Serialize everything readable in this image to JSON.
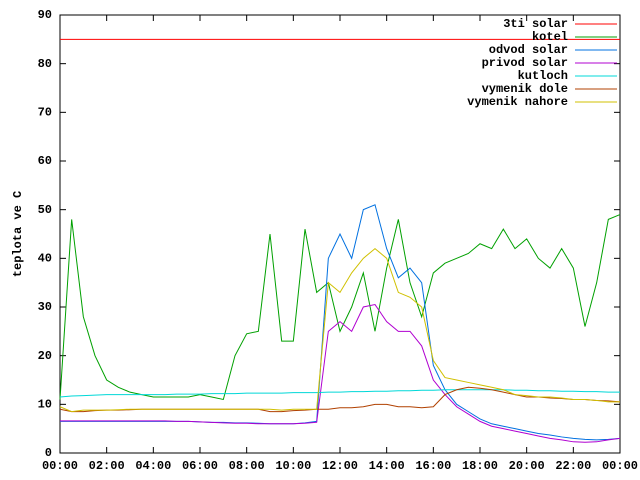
{
  "chart_data": {
    "type": "line",
    "ylabel": "teplota ve C",
    "x": [
      0,
      0.5,
      1,
      1.5,
      2,
      2.5,
      3,
      3.5,
      4,
      4.5,
      5,
      5.5,
      6,
      6.5,
      7,
      7.5,
      8,
      8.5,
      9,
      9.5,
      10,
      10.5,
      11,
      11.5,
      12,
      12.5,
      13,
      13.5,
      14,
      14.5,
      15,
      15.5,
      16,
      16.5,
      17,
      17.5,
      18,
      18.5,
      19,
      19.5,
      20,
      20.5,
      21,
      21.5,
      22,
      22.5,
      23,
      23.5,
      24
    ],
    "xlim": [
      0,
      24
    ],
    "xticks": [
      {
        "value": 0,
        "label": "00:00"
      },
      {
        "value": 2,
        "label": "02:00"
      },
      {
        "value": 4,
        "label": "04:00"
      },
      {
        "value": 6,
        "label": "06:00"
      },
      {
        "value": 8,
        "label": "08:00"
      },
      {
        "value": 10,
        "label": "10:00"
      },
      {
        "value": 12,
        "label": "12:00"
      },
      {
        "value": 14,
        "label": "14:00"
      },
      {
        "value": 16,
        "label": "16:00"
      },
      {
        "value": 18,
        "label": "18:00"
      },
      {
        "value": 20,
        "label": "20:00"
      },
      {
        "value": 22,
        "label": "22:00"
      },
      {
        "value": 24,
        "label": "00:00"
      }
    ],
    "ylim": [
      0,
      90
    ],
    "yticks": [
      0,
      10,
      20,
      30,
      40,
      50,
      60,
      70,
      80,
      90
    ],
    "legend": "top-right",
    "series": [
      {
        "name": "3ti solar",
        "color": "#ff0000",
        "values": [
          85,
          85,
          85,
          85,
          85,
          85,
          85,
          85,
          85,
          85,
          85,
          85,
          85,
          85,
          85,
          85,
          85,
          85,
          85,
          85,
          85,
          85,
          85,
          85,
          85,
          85,
          85,
          85,
          85,
          85,
          85,
          85,
          85,
          85,
          85,
          85,
          85,
          85,
          85,
          85,
          85,
          85,
          85,
          85,
          85,
          85,
          85,
          85,
          85
        ]
      },
      {
        "name": "kotel",
        "color": "#00a000",
        "values": [
          11,
          48,
          28,
          20,
          15,
          13.5,
          12.5,
          12,
          11.5,
          11.5,
          11.5,
          11.5,
          12,
          11.5,
          11,
          20,
          24.5,
          25,
          45,
          23,
          23,
          46,
          33,
          35,
          25,
          30,
          37,
          25,
          38,
          48,
          35,
          28,
          37,
          39,
          40,
          41,
          43,
          42,
          46,
          42,
          44,
          40,
          38,
          42,
          38,
          26,
          35,
          48,
          49
        ]
      },
      {
        "name": "odvod solar",
        "color": "#0070e0",
        "values": [
          6.5,
          6.5,
          6.5,
          6.5,
          6.5,
          6.5,
          6.5,
          6.5,
          6.5,
          6.5,
          6.5,
          6.5,
          6.4,
          6.3,
          6.3,
          6.2,
          6.2,
          6.1,
          6,
          6,
          6,
          6.2,
          6.5,
          40,
          45,
          40,
          50,
          51,
          42,
          36,
          38,
          35,
          18,
          13,
          10,
          8.5,
          7,
          6,
          5.5,
          5,
          4.5,
          4,
          3.7,
          3.3,
          3,
          2.8,
          2.7,
          2.8,
          3
        ]
      },
      {
        "name": "privod solar",
        "color": "#b000d0",
        "values": [
          6.6,
          6.6,
          6.6,
          6.6,
          6.6,
          6.6,
          6.6,
          6.6,
          6.6,
          6.6,
          6.5,
          6.5,
          6.4,
          6.3,
          6.2,
          6.1,
          6.1,
          6,
          6,
          6,
          6,
          6.1,
          6.3,
          25,
          27,
          25,
          30,
          30.5,
          27,
          25,
          25,
          22,
          15,
          12,
          9.5,
          8,
          6.5,
          5.5,
          5,
          4.5,
          4,
          3.5,
          3,
          2.7,
          2.3,
          2.2,
          2.3,
          2.7,
          3
        ]
      },
      {
        "name": "kutloch",
        "color": "#00d8d8",
        "values": [
          11.5,
          11.7,
          11.8,
          11.9,
          12,
          12,
          12,
          12,
          12,
          12,
          12.1,
          12.1,
          12.1,
          12.2,
          12.2,
          12.2,
          12.3,
          12.3,
          12.3,
          12.3,
          12.4,
          12.4,
          12.4,
          12.5,
          12.5,
          12.6,
          12.6,
          12.7,
          12.7,
          12.8,
          12.8,
          12.9,
          12.9,
          13,
          13,
          13,
          13,
          13,
          13,
          12.9,
          12.9,
          12.8,
          12.8,
          12.7,
          12.7,
          12.6,
          12.6,
          12.5,
          12.5
        ]
      },
      {
        "name": "vymenik dole",
        "color": "#b04000",
        "values": [
          9,
          8.5,
          8.5,
          8.7,
          8.8,
          8.8,
          8.9,
          9,
          9,
          9,
          9,
          9,
          9,
          9,
          9,
          9,
          9,
          9,
          8.5,
          8.5,
          8.7,
          8.8,
          9,
          9,
          9.3,
          9.3,
          9.5,
          10,
          10,
          9.5,
          9.5,
          9.3,
          9.5,
          12,
          13,
          13.5,
          13.3,
          13,
          12.5,
          12,
          11.5,
          11.5,
          11.3,
          11.2,
          11,
          11,
          10.8,
          10.7,
          10.5
        ]
      },
      {
        "name": "vymenik nahore",
        "color": "#d0c000",
        "values": [
          9.5,
          8.5,
          8.8,
          8.8,
          8.8,
          8.9,
          9,
          9,
          9,
          9,
          9,
          9,
          9,
          9,
          9,
          9,
          9,
          9,
          9,
          8.8,
          9,
          9,
          9,
          35,
          33,
          37,
          40,
          42,
          40,
          33,
          32,
          30,
          19,
          15.5,
          15,
          14.5,
          14,
          13.5,
          13,
          12,
          11.8,
          11.5,
          11.5,
          11.3,
          11,
          11,
          10.8,
          10.5,
          10.5
        ]
      }
    ]
  }
}
